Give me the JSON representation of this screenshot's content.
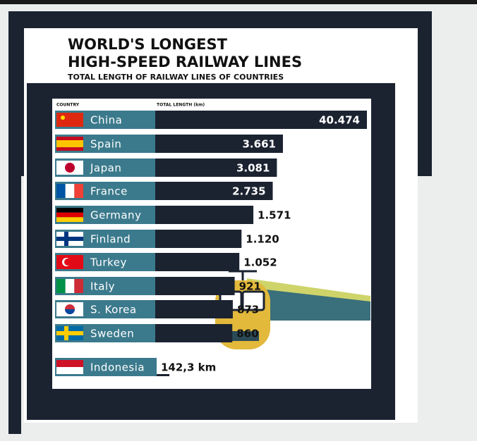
{
  "chart_data": {
    "type": "bar",
    "orientation": "horizontal",
    "title": [
      "WORLD'S LONGEST",
      "HIGH-SPEED RAILWAY LINES"
    ],
    "subtitle": "TOTAL LENGTH OF RAILWAY LINES OF COUNTRIES",
    "category_header": "COUNTRY",
    "value_header": "TOTAL LENGTH (km)",
    "categories": [
      "China",
      "Spain",
      "Japan",
      "France",
      "Germany",
      "Finland",
      "Turkey",
      "Italy",
      "S. Korea",
      "Sweden",
      "Indonesia"
    ],
    "values": [
      40474,
      3661,
      3081,
      2735,
      1571,
      1120,
      1052,
      921,
      873,
      860,
      142.3
    ],
    "value_labels": [
      "40.474",
      "3.661",
      "3.081",
      "2.735",
      "1.571",
      "1.120",
      "1.052",
      "921",
      "873",
      "860",
      "142,3 km"
    ],
    "log_scale": true,
    "color": "#1b2331",
    "label_color": "#3b7a8c"
  }
}
